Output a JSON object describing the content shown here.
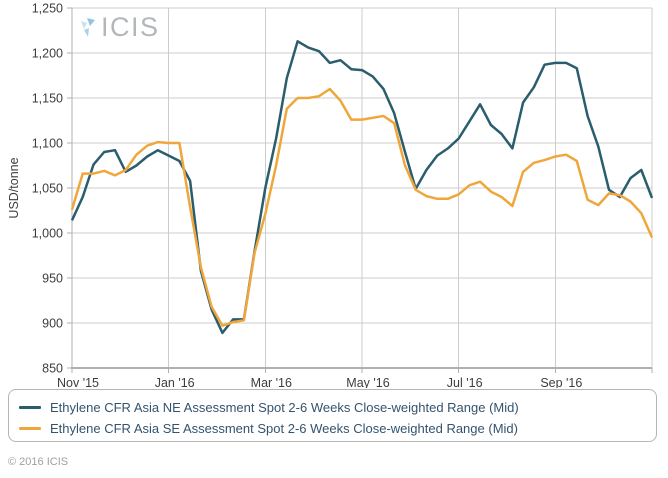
{
  "logo": {
    "text": "ICIS"
  },
  "footer": {
    "copyright": "© 2016 ICIS"
  },
  "chart_data": {
    "type": "line",
    "title": "",
    "xlabel": "",
    "ylabel": "USD/tonne",
    "ylim": [
      850,
      1250
    ],
    "grid": true,
    "legend_position": "bottom",
    "y_ticks": [
      {
        "value": 850,
        "label": "850"
      },
      {
        "value": 900,
        "label": "900"
      },
      {
        "value": 950,
        "label": "950"
      },
      {
        "value": 1000,
        "label": "1,000"
      },
      {
        "value": 1050,
        "label": "1,050"
      },
      {
        "value": 1100,
        "label": "1,100"
      },
      {
        "value": 1150,
        "label": "1,150"
      },
      {
        "value": 1200,
        "label": "1,200"
      },
      {
        "value": 1250,
        "label": "1,250"
      }
    ],
    "x_ticks": [
      {
        "week": 0,
        "label": "Nov '15"
      },
      {
        "week": 9,
        "label": "Jan '16"
      },
      {
        "week": 18,
        "label": "Mar '16"
      },
      {
        "week": 27,
        "label": "May '16"
      },
      {
        "week": 36,
        "label": "Jul '16"
      },
      {
        "week": 45,
        "label": "Sep '16"
      }
    ],
    "x_weeks_total": 54,
    "series": [
      {
        "name": "Ethylene CFR Asia NE Assessment Spot 2-6 Weeks Close-weighted Range (Mid)",
        "color": "#2a5d6d",
        "values": [
          1014,
          1040,
          1076,
          1090,
          1092,
          1068,
          1075,
          1085,
          1092,
          1086,
          1080,
          1058,
          958,
          915,
          889,
          904,
          904,
          980,
          1050,
          1105,
          1172,
          1213,
          1206,
          1202,
          1189,
          1192,
          1182,
          1181,
          1174,
          1160,
          1133,
          1090,
          1049,
          1070,
          1086,
          1094,
          1105,
          1124,
          1143,
          1120,
          1110,
          1094,
          1145,
          1162,
          1187,
          1189,
          1189,
          1183,
          1130,
          1096,
          1048,
          1040,
          1061,
          1070,
          1039
        ]
      },
      {
        "name": "Ethylene CFR Asia SE Assessment Spot 2-6 Weeks Close-weighted Range (Mid)",
        "color": "#efa73c",
        "values": [
          1026,
          1066,
          1066,
          1069,
          1064,
          1070,
          1087,
          1097,
          1101,
          1100,
          1100,
          1029,
          962,
          918,
          897,
          901,
          903,
          978,
          1021,
          1075,
          1138,
          1150,
          1150,
          1152,
          1160,
          1147,
          1126,
          1126,
          1128,
          1130,
          1122,
          1075,
          1048,
          1041,
          1038,
          1038,
          1043,
          1053,
          1057,
          1046,
          1040,
          1030,
          1068,
          1078,
          1081,
          1085,
          1087,
          1080,
          1037,
          1031,
          1044,
          1042,
          1035,
          1022,
          995
        ]
      }
    ]
  }
}
